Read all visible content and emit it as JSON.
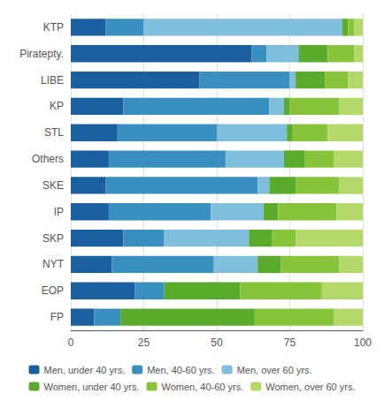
{
  "chart_data": {
    "type": "bar",
    "orientation": "horizontal",
    "stacked": true,
    "categories": [
      "KTP",
      "Piratepty.",
      "LIBE",
      "KP",
      "STL",
      "Others",
      "SKE",
      "IP",
      "SKP",
      "NYT",
      "EOP",
      "FP"
    ],
    "series": [
      {
        "name": "Men, under 40 yrs.",
        "color": "#1a5fa0",
        "values": [
          12,
          62,
          44,
          18,
          16,
          13,
          12,
          13,
          18,
          14,
          22,
          8
        ]
      },
      {
        "name": "Men, 40-60 yrs.",
        "color": "#3990c0",
        "values": [
          13,
          5,
          31,
          50,
          34,
          40,
          52,
          35,
          14,
          35,
          10,
          9
        ]
      },
      {
        "name": "Men, over 60 yrs.",
        "color": "#80bedd",
        "values": [
          68,
          11,
          2,
          5,
          24,
          20,
          4,
          18,
          29,
          15,
          0,
          0
        ]
      },
      {
        "name": "Women, under 40 yrs.",
        "color": "#5aab2c",
        "values": [
          2,
          10,
          10,
          2,
          2,
          7,
          9,
          5,
          8,
          8,
          26,
          46
        ]
      },
      {
        "name": "Women, 40-60 yrs.",
        "color": "#88c43a",
        "values": [
          2,
          9,
          8,
          17,
          12,
          10,
          15,
          20,
          8,
          20,
          28,
          27
        ]
      },
      {
        "name": "Women, over 60 yrs.",
        "color": "#b4d96a",
        "values": [
          3,
          3,
          5,
          8,
          12,
          10,
          8,
          9,
          23,
          8,
          14,
          10
        ]
      }
    ],
    "xlim": [
      0,
      100
    ],
    "xticks": [
      0,
      25,
      50,
      75,
      100
    ],
    "grid": true,
    "legend": "bottom"
  }
}
